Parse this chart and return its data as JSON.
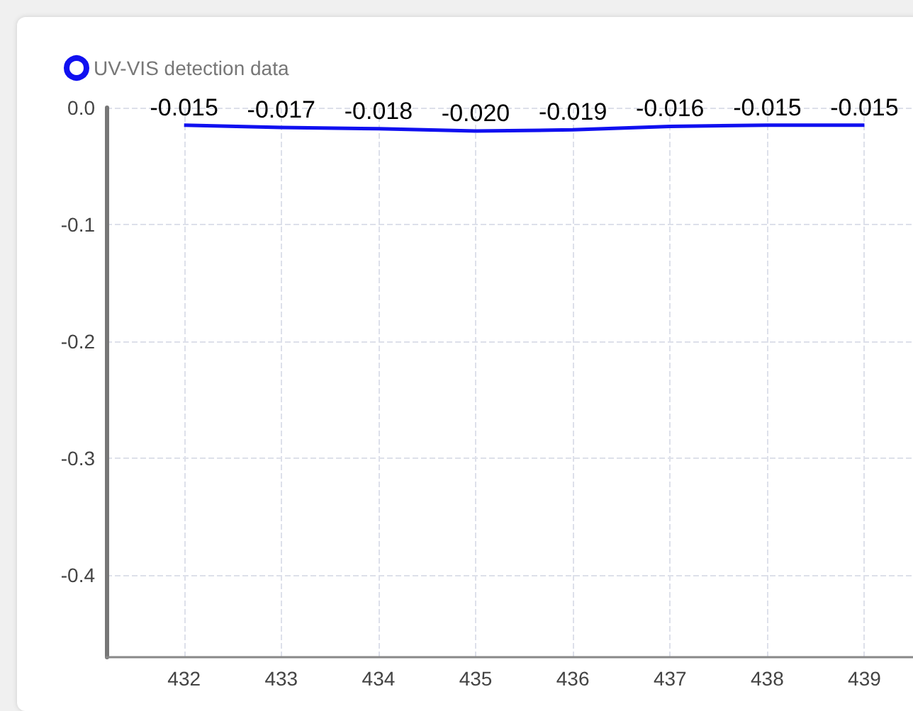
{
  "chart_data": {
    "type": "line",
    "x": [
      432,
      433,
      434,
      435,
      436,
      437,
      438,
      439
    ],
    "series": [
      {
        "name": "UV-VIS detection data",
        "color": "#1010f0",
        "values": [
          -0.015,
          -0.017,
          -0.018,
          -0.02,
          -0.019,
          -0.016,
          -0.015,
          -0.015
        ],
        "value_labels": [
          "-0.015",
          "-0.017",
          "-0.018",
          "-0.020",
          "-0.019",
          "-0.016",
          "-0.015",
          "-0.015"
        ]
      }
    ],
    "xlim": [
      431.2,
      439.5
    ],
    "xticks": [
      432,
      433,
      434,
      435,
      436,
      437,
      438,
      439
    ],
    "ylim": [
      -0.47,
      0
    ],
    "yticks": [
      {
        "value": 0,
        "label": "0.0"
      },
      {
        "value": -0.1,
        "label": "-0.1"
      },
      {
        "value": -0.2,
        "label": "-0.2"
      },
      {
        "value": -0.3,
        "label": "-0.3"
      },
      {
        "value": -0.4,
        "label": "-0.4"
      }
    ],
    "grid": true,
    "legend": "top left",
    "marker": "none",
    "line_style": "solid"
  }
}
